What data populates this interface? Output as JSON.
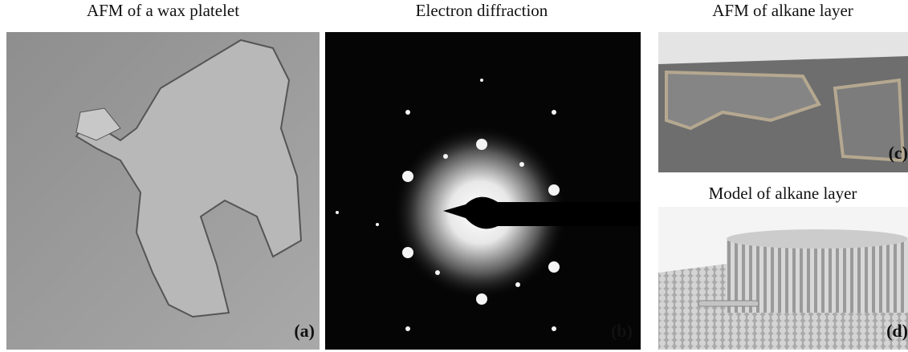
{
  "panels": [
    {
      "title": "AFM of a wax platelet",
      "label": "(a)"
    },
    {
      "title": "Electron diffraction",
      "label": "(b)"
    },
    {
      "title": "AFM of alkane layer",
      "label": "(c)"
    },
    {
      "title": "Model of alkane layer",
      "label": "(d)"
    }
  ]
}
